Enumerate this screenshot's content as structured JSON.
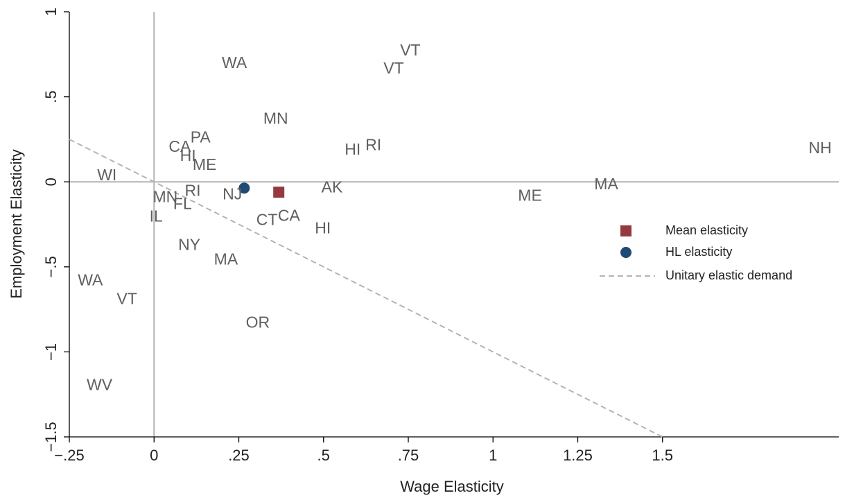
{
  "chart_data": {
    "type": "scatter",
    "x_label": "Wage Elasticity",
    "y_label": "Employment Elasticity",
    "xlim": [
      -0.25,
      2.02
    ],
    "ylim": [
      -1.5,
      1
    ],
    "xticks": [
      {
        "value": -0.25,
        "label": "−.25"
      },
      0,
      {
        "value": 0.25,
        "label": ".25"
      },
      {
        "value": 0.5,
        "label": ".5"
      },
      {
        "value": 0.75,
        "label": ".75"
      },
      1,
      {
        "value": 1.25,
        "label": "1.25"
      },
      1.5
    ],
    "yticks": [
      {
        "value": -1.5,
        "label": "−1.5"
      },
      {
        "value": -1,
        "label": "−1"
      },
      {
        "value": -0.5,
        "label": "−.5"
      },
      0,
      {
        "value": 0.5,
        "label": ".5"
      },
      1
    ],
    "xline": 0,
    "yline": 0,
    "ref_color": "#b4b4b4",
    "points": {
      "labels": [
        "WA",
        "VT",
        "VT",
        "MN",
        "PA",
        "CA",
        "HI",
        "ME",
        "HI",
        "RI",
        "NH",
        "WI",
        "RI",
        "MN",
        "FL",
        "IL",
        "NJ",
        "AK",
        "ME",
        "MA",
        "CT",
        "CA",
        "HI",
        "NY",
        "MA",
        "WA",
        "VT",
        "OR",
        "WV"
      ],
      "x": [
        0.237,
        0.756,
        0.707,
        0.359,
        0.137,
        0.076,
        0.1,
        0.149,
        0.586,
        0.647,
        1.965,
        -0.139,
        0.114,
        0.033,
        0.084,
        0.006,
        0.231,
        0.525,
        1.109,
        1.334,
        0.333,
        0.398,
        0.498,
        0.104,
        0.212,
        -0.188,
        -0.08,
        0.306,
        -0.161
      ],
      "y": [
        0.694,
        0.767,
        0.661,
        0.367,
        0.257,
        0.2,
        0.147,
        0.094,
        0.184,
        0.212,
        0.192,
        0.033,
        -0.057,
        -0.094,
        -0.135,
        -0.208,
        -0.078,
        -0.037,
        -0.086,
        -0.02,
        -0.229,
        -0.204,
        -0.278,
        -0.376,
        -0.461,
        -0.584,
        -0.694,
        -0.833,
        -1.2
      ],
      "color": "#5f5f5f"
    },
    "series": [
      {
        "name": "Mean elasticity",
        "color": "#943a3f",
        "marker": "square",
        "x": [
          0.368
        ],
        "y": [
          -0.061
        ]
      },
      {
        "name": "HL elasticity",
        "color": "#1f4a73",
        "marker": "circle",
        "x": [
          0.266
        ],
        "y": [
          -0.037
        ]
      },
      {
        "name": "Unitary elastic demand",
        "color": "#b4b4b4",
        "marker": "dash",
        "x": [
          -0.25,
          1.5
        ],
        "y": [
          0.25,
          -1.5
        ]
      }
    ]
  }
}
